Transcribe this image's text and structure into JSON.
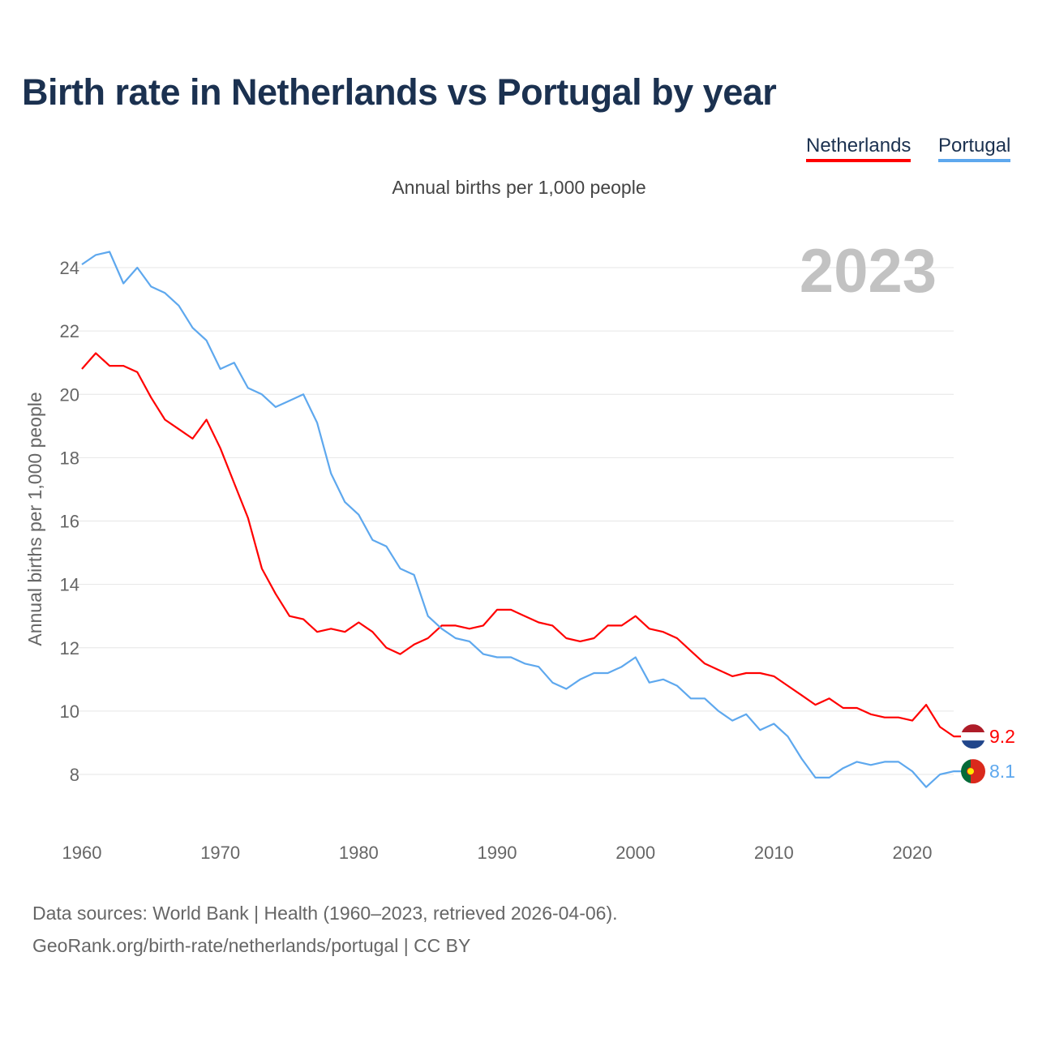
{
  "chart_data": {
    "type": "line",
    "title": "Birth rate in Netherlands vs Portugal by year",
    "subtitle": "Annual births per 1,000 people",
    "ylabel": "Annual births per 1,000 people",
    "xlabel": "",
    "year_label": "2023",
    "ylim": [
      6.5,
      25
    ],
    "xlim": [
      1960,
      2023
    ],
    "yticks": [
      8,
      10,
      12,
      14,
      16,
      18,
      20,
      22,
      24
    ],
    "xticks": [
      1960,
      1970,
      1980,
      1990,
      2000,
      2010,
      2020
    ],
    "grid": true,
    "legend_placement": "top-right",
    "x": [
      1960,
      1961,
      1962,
      1963,
      1964,
      1965,
      1966,
      1967,
      1968,
      1969,
      1970,
      1971,
      1972,
      1973,
      1974,
      1975,
      1976,
      1977,
      1978,
      1979,
      1980,
      1981,
      1982,
      1983,
      1984,
      1985,
      1986,
      1987,
      1988,
      1989,
      1990,
      1991,
      1992,
      1993,
      1994,
      1995,
      1996,
      1997,
      1998,
      1999,
      2000,
      2001,
      2002,
      2003,
      2004,
      2005,
      2006,
      2007,
      2008,
      2009,
      2010,
      2011,
      2012,
      2013,
      2014,
      2015,
      2016,
      2017,
      2018,
      2019,
      2020,
      2021,
      2022,
      2023
    ],
    "series": [
      {
        "name": "Netherlands",
        "color": "#ff0000",
        "end_label": "9.2",
        "values": [
          20.8,
          21.3,
          20.9,
          20.9,
          20.7,
          19.9,
          19.2,
          18.9,
          18.6,
          19.2,
          18.3,
          17.2,
          16.1,
          14.5,
          13.7,
          13.0,
          12.9,
          12.5,
          12.6,
          12.5,
          12.8,
          12.5,
          12.0,
          11.8,
          12.1,
          12.3,
          12.7,
          12.7,
          12.6,
          12.7,
          13.2,
          13.2,
          13.0,
          12.8,
          12.7,
          12.3,
          12.2,
          12.3,
          12.7,
          12.7,
          13.0,
          12.6,
          12.5,
          12.3,
          11.9,
          11.5,
          11.3,
          11.1,
          11.2,
          11.2,
          11.1,
          10.8,
          10.5,
          10.2,
          10.4,
          10.1,
          10.1,
          9.9,
          9.8,
          9.8,
          9.7,
          10.2,
          9.5,
          9.2
        ]
      },
      {
        "name": "Portugal",
        "color": "#5ea8ee",
        "end_label": "8.1",
        "values": [
          24.1,
          24.4,
          24.5,
          23.5,
          24.0,
          23.4,
          23.2,
          22.8,
          22.1,
          21.7,
          20.8,
          21.0,
          20.2,
          20.0,
          19.6,
          19.8,
          20.0,
          19.1,
          17.5,
          16.6,
          16.2,
          15.4,
          15.2,
          14.5,
          14.3,
          13.0,
          12.6,
          12.3,
          12.2,
          11.8,
          11.7,
          11.7,
          11.5,
          11.4,
          10.9,
          10.7,
          11.0,
          11.2,
          11.2,
          11.4,
          11.7,
          10.9,
          11.0,
          10.8,
          10.4,
          10.4,
          10.0,
          9.7,
          9.9,
          9.4,
          9.6,
          9.2,
          8.5,
          7.9,
          7.9,
          8.2,
          8.4,
          8.3,
          8.4,
          8.4,
          8.1,
          7.6,
          8.0,
          8.1
        ]
      }
    ]
  },
  "footer": {
    "line1": "Data sources: World Bank | Health (1960–2023, retrieved 2026-04-06).",
    "line2": "GeoRank.org/birth-rate/netherlands/portugal | CC BY"
  }
}
